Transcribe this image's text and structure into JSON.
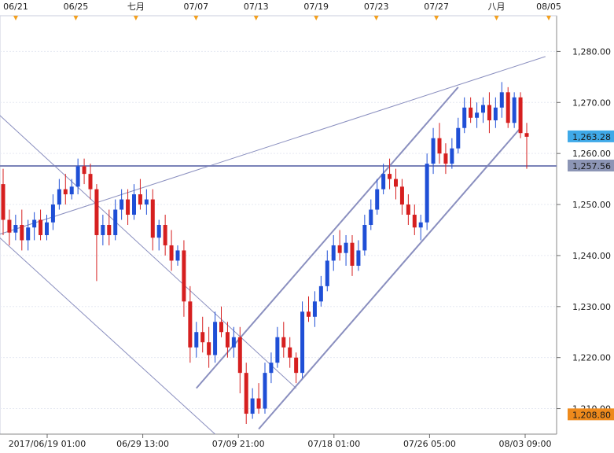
{
  "chart_data": {
    "type": "candlestick",
    "y_unit": "price",
    "ylim": [
      1205,
      1287
    ],
    "y_ticks": [
      "1,280.00",
      "1,270.00",
      "1,260.00",
      "1,250.00",
      "1,240.00",
      "1,230.00",
      "1,220.00",
      "1,210.00"
    ],
    "y_tick_values": [
      1280,
      1270,
      1260,
      1250,
      1240,
      1230,
      1220,
      1210
    ],
    "top_date_labels": [
      "06/21",
      "06/25",
      "七月",
      "07/07",
      "07/13",
      "07/19",
      "07/23",
      "07/27",
      "八月",
      "08/05"
    ],
    "bottom_time_labels": [
      "2017/06/19 01:00",
      "06/29 13:00",
      "07/09 21:00",
      "07/18 01:00",
      "07/26 05:00",
      "08/03 09:00"
    ],
    "markers": [
      {
        "label": "1,263.28",
        "value": 1263.28,
        "color": "#3fa9e8"
      },
      {
        "label": "1,257.56",
        "value": 1257.56,
        "color": "#8c95b5"
      },
      {
        "label": "1,208.80",
        "value": 1208.8,
        "color": "#ee8a1c"
      }
    ],
    "candles": [
      [
        1254.0,
        1257.0,
        1244.0,
        1247.0
      ],
      [
        1247.0,
        1249.0,
        1242.0,
        1244.5
      ],
      [
        1244.5,
        1248.0,
        1243.0,
        1246.0
      ],
      [
        1246.0,
        1249.0,
        1241.0,
        1243.0
      ],
      [
        1243.0,
        1247.0,
        1241.0,
        1245.5
      ],
      [
        1245.5,
        1248.5,
        1243.0,
        1247.0
      ],
      [
        1247.0,
        1249.0,
        1243.0,
        1244.0
      ],
      [
        1244.0,
        1248.0,
        1243.0,
        1246.5
      ],
      [
        1246.5,
        1252.0,
        1245.0,
        1250.0
      ],
      [
        1250.0,
        1255.0,
        1249.0,
        1253.0
      ],
      [
        1253.0,
        1256.0,
        1250.0,
        1252.0
      ],
      [
        1252.0,
        1255.0,
        1251.0,
        1253.5
      ],
      [
        1253.5,
        1259.0,
        1252.0,
        1257.5
      ],
      [
        1257.5,
        1259.0,
        1254.0,
        1256.0
      ],
      [
        1256.0,
        1258.0,
        1251.0,
        1253.0
      ],
      [
        1253.0,
        1254.0,
        1235.0,
        1244.0
      ],
      [
        1244.0,
        1248.0,
        1242.0,
        1246.0
      ],
      [
        1246.0,
        1249.0,
        1242.0,
        1244.0
      ],
      [
        1244.0,
        1251.0,
        1243.0,
        1249.0
      ],
      [
        1249.0,
        1253.0,
        1247.0,
        1251.0
      ],
      [
        1251.0,
        1253.0,
        1246.0,
        1248.0
      ],
      [
        1248.0,
        1254.0,
        1247.0,
        1252.0
      ],
      [
        1252.0,
        1255.0,
        1249.0,
        1250.0
      ],
      [
        1250.0,
        1253.0,
        1248.0,
        1251.0
      ],
      [
        1251.0,
        1253.0,
        1241.0,
        1243.5
      ],
      [
        1243.5,
        1247.0,
        1241.0,
        1246.0
      ],
      [
        1246.0,
        1248.0,
        1240.0,
        1242.0
      ],
      [
        1242.0,
        1245.0,
        1237.0,
        1239.0
      ],
      [
        1239.0,
        1242.0,
        1238.0,
        1241.0
      ],
      [
        1241.0,
        1243.0,
        1228.0,
        1231.0
      ],
      [
        1231.0,
        1234.0,
        1219.0,
        1222.0
      ],
      [
        1222.0,
        1227.0,
        1220.0,
        1225.0
      ],
      [
        1225.0,
        1228.0,
        1221.0,
        1223.0
      ],
      [
        1223.0,
        1226.0,
        1218.0,
        1220.5
      ],
      [
        1220.5,
        1229.0,
        1219.0,
        1227.0
      ],
      [
        1227.0,
        1230.0,
        1224.0,
        1225.0
      ],
      [
        1225.0,
        1227.0,
        1220.0,
        1222.0
      ],
      [
        1222.0,
        1226.0,
        1220.0,
        1224.0
      ],
      [
        1224.0,
        1226.0,
        1213.0,
        1217.0
      ],
      [
        1217.0,
        1219.0,
        1207.0,
        1209.0
      ],
      [
        1209.0,
        1214.0,
        1208.0,
        1212.0
      ],
      [
        1212.0,
        1215.0,
        1209.0,
        1210.0
      ],
      [
        1210.0,
        1219.0,
        1209.0,
        1217.0
      ],
      [
        1217.0,
        1221.0,
        1215.0,
        1219.0
      ],
      [
        1219.0,
        1226.0,
        1218.0,
        1224.0
      ],
      [
        1224.0,
        1227.0,
        1220.0,
        1222.0
      ],
      [
        1222.0,
        1224.0,
        1218.0,
        1220.0
      ],
      [
        1220.0,
        1221.0,
        1215.0,
        1217.0
      ],
      [
        1217.0,
        1231.0,
        1216.0,
        1229.0
      ],
      [
        1229.0,
        1232.0,
        1227.0,
        1228.0
      ],
      [
        1228.0,
        1233.0,
        1226.0,
        1231.0
      ],
      [
        1231.0,
        1236.0,
        1230.0,
        1234.0
      ],
      [
        1234.0,
        1241.0,
        1233.0,
        1239.0
      ],
      [
        1239.0,
        1244.0,
        1237.0,
        1242.0
      ],
      [
        1242.0,
        1245.0,
        1239.0,
        1240.5
      ],
      [
        1240.5,
        1244.0,
        1238.0,
        1242.5
      ],
      [
        1242.5,
        1244.0,
        1236.0,
        1238.0
      ],
      [
        1238.0,
        1243.0,
        1237.0,
        1241.0
      ],
      [
        1241.0,
        1248.0,
        1240.0,
        1246.0
      ],
      [
        1246.0,
        1251.0,
        1245.0,
        1249.0
      ],
      [
        1249.0,
        1255.0,
        1248.0,
        1253.0
      ],
      [
        1253.0,
        1258.0,
        1252.0,
        1256.0
      ],
      [
        1256.0,
        1259.0,
        1253.0,
        1255.0
      ],
      [
        1255.0,
        1257.0,
        1251.0,
        1253.5
      ],
      [
        1253.5,
        1255.0,
        1248.0,
        1250.0
      ],
      [
        1250.0,
        1252.0,
        1246.0,
        1248.0
      ],
      [
        1248.0,
        1250.0,
        1244.0,
        1245.5
      ],
      [
        1245.5,
        1248.0,
        1243.0,
        1246.5
      ],
      [
        1246.5,
        1260.0,
        1245.0,
        1258.0
      ],
      [
        1258.0,
        1265.0,
        1256.0,
        1263.0
      ],
      [
        1263.0,
        1266.0,
        1258.0,
        1260.0
      ],
      [
        1260.0,
        1262.0,
        1256.0,
        1258.0
      ],
      [
        1258.0,
        1263.0,
        1257.0,
        1261.0
      ],
      [
        1261.0,
        1267.0,
        1260.0,
        1265.0
      ],
      [
        1265.0,
        1271.0,
        1264.0,
        1269.0
      ],
      [
        1269.0,
        1271.0,
        1266.0,
        1267.0
      ],
      [
        1267.0,
        1270.0,
        1265.0,
        1268.0
      ],
      [
        1268.0,
        1271.0,
        1266.0,
        1269.5
      ],
      [
        1269.5,
        1272.0,
        1264.0,
        1266.5
      ],
      [
        1266.5,
        1271.0,
        1265.0,
        1269.0
      ],
      [
        1269.0,
        1274.0,
        1267.0,
        1272.0
      ],
      [
        1272.0,
        1273.0,
        1265.0,
        1266.0
      ],
      [
        1266.0,
        1272.0,
        1265.0,
        1271.0
      ],
      [
        1271.0,
        1272.0,
        1263.0,
        1264.0
      ],
      [
        1264.0,
        1266.0,
        1257.0,
        1263.28
      ]
    ]
  }
}
